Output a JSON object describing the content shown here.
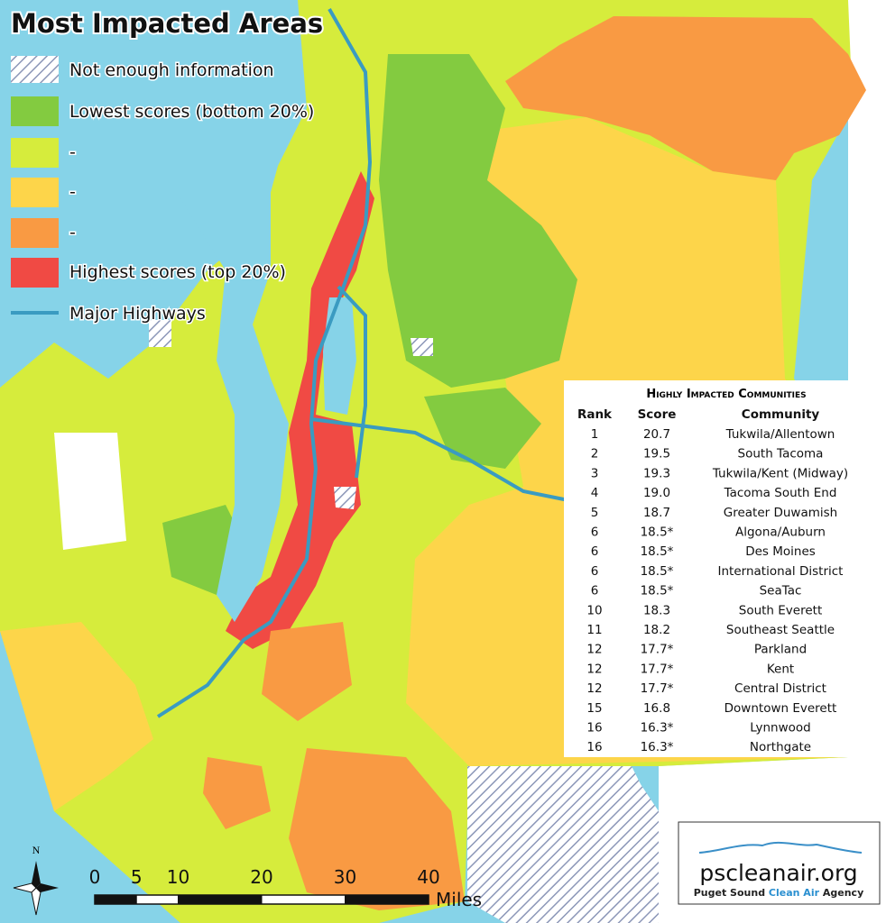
{
  "map": {
    "title": "Most Impacted Areas",
    "legend": [
      "Not enough information",
      "Lowest scores (bottom 20%)",
      "-",
      "-",
      "-",
      "Highest scores (top 20%)",
      "Major Highways"
    ],
    "north_label": "N",
    "scale": {
      "ticks": [
        0,
        5,
        10,
        20,
        30,
        40
      ],
      "unit": "Miles"
    }
  },
  "table": {
    "title": "Highly Impacted Communities",
    "columns": [
      "Rank",
      "Score",
      "Community"
    ],
    "rows": [
      [
        "1",
        "20.7",
        "Tukwila/Allentown"
      ],
      [
        "2",
        "19.5",
        "South Tacoma"
      ],
      [
        "3",
        "19.3",
        "Tukwila/Kent (Midway)"
      ],
      [
        "4",
        "19.0",
        "Tacoma South End"
      ],
      [
        "5",
        "18.7",
        "Greater Duwamish"
      ],
      [
        "6",
        "18.5*",
        "Algona/Auburn"
      ],
      [
        "6",
        "18.5*",
        "Des Moines"
      ],
      [
        "6",
        "18.5*",
        "International District"
      ],
      [
        "6",
        "18.5*",
        "SeaTac"
      ],
      [
        "10",
        "18.3",
        "South Everett"
      ],
      [
        "11",
        "18.2",
        "Southeast Seattle"
      ],
      [
        "12",
        "17.7*",
        "Parkland"
      ],
      [
        "12",
        "17.7*",
        "Kent"
      ],
      [
        "12",
        "17.7*",
        "Central District"
      ],
      [
        "15",
        "16.8",
        "Downtown Everett"
      ],
      [
        "16",
        "16.3*",
        "Lynnwood"
      ],
      [
        "16",
        "16.3*",
        "Northgate"
      ]
    ]
  },
  "logo": {
    "site": "pscleanair.org",
    "agency": [
      "Puget Sound",
      "Clean Air",
      "Agency"
    ]
  }
}
